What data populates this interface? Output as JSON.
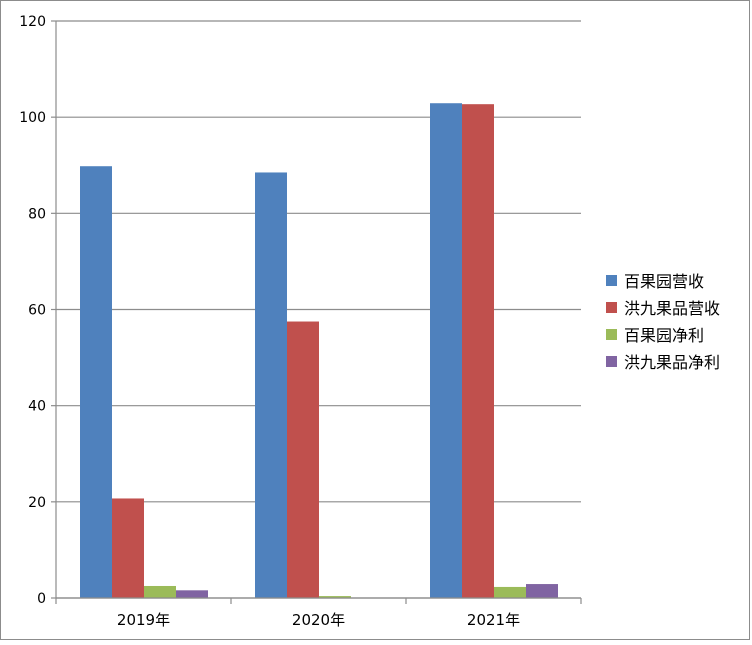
{
  "chart_data": {
    "type": "bar",
    "categories": [
      "2019年",
      "2020年",
      "2021年"
    ],
    "series": [
      {
        "name": "百果园营收",
        "values": [
          89.8,
          88.5,
          102.9
        ],
        "color": "#4f81bd"
      },
      {
        "name": "洪九果品营收",
        "values": [
          20.7,
          57.5,
          102.7
        ],
        "color": "#c0504d"
      },
      {
        "name": "百果园净利",
        "values": [
          2.5,
          0.4,
          2.3
        ],
        "color": "#9bbb59"
      },
      {
        "name": "洪九果品净利",
        "values": [
          1.6,
          0.0,
          2.9
        ],
        "color": "#8064a2"
      }
    ],
    "yticks": [
      "0",
      "20",
      "40",
      "60",
      "80",
      "100",
      "120"
    ],
    "ylim": [
      0,
      120
    ],
    "grid": true,
    "legend_position": "right"
  }
}
